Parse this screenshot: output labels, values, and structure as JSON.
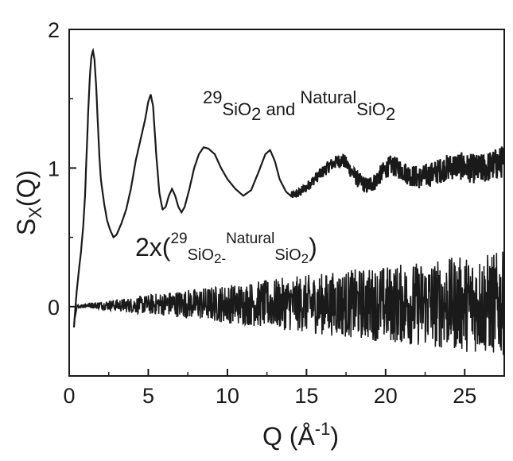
{
  "chart_data": {
    "type": "line",
    "title": "",
    "xlabel": {
      "main": "Q (Å",
      "sup": "-1",
      "close": ")"
    },
    "ylabel": {
      "main": "S",
      "sub": "X",
      "rest": "(Q)"
    },
    "xlim": [
      0,
      27.5
    ],
    "ylim": [
      -0.5,
      2.0
    ],
    "x_ticks": [
      0,
      5,
      10,
      15,
      20,
      25
    ],
    "y_ticks": [
      0,
      1,
      2
    ],
    "grid": false,
    "series": [
      {
        "points": [
          [
            0.3,
            -0.15
          ],
          [
            0.45,
            0.08
          ],
          [
            0.6,
            0.25
          ],
          [
            0.75,
            0.4
          ],
          [
            0.9,
            0.6
          ],
          [
            1.0,
            0.8
          ],
          [
            1.1,
            1.1
          ],
          [
            1.2,
            1.4
          ],
          [
            1.3,
            1.65
          ],
          [
            1.4,
            1.8
          ],
          [
            1.5,
            1.85
          ],
          [
            1.6,
            1.78
          ],
          [
            1.7,
            1.6
          ],
          [
            1.8,
            1.35
          ],
          [
            1.9,
            1.1
          ],
          [
            2.0,
            0.92
          ],
          [
            2.2,
            0.75
          ],
          [
            2.4,
            0.62
          ],
          [
            2.6,
            0.55
          ],
          [
            2.8,
            0.5
          ],
          [
            3.0,
            0.52
          ],
          [
            3.3,
            0.6
          ],
          [
            3.6,
            0.7
          ],
          [
            3.9,
            0.85
          ],
          [
            4.2,
            1.05
          ],
          [
            4.5,
            1.2
          ],
          [
            4.8,
            1.35
          ],
          [
            5.0,
            1.48
          ],
          [
            5.15,
            1.53
          ],
          [
            5.3,
            1.45
          ],
          [
            5.5,
            1.1
          ],
          [
            5.7,
            0.82
          ],
          [
            5.9,
            0.7
          ],
          [
            6.1,
            0.72
          ],
          [
            6.3,
            0.8
          ],
          [
            6.5,
            0.85
          ],
          [
            6.7,
            0.8
          ],
          [
            6.9,
            0.72
          ],
          [
            7.1,
            0.68
          ],
          [
            7.3,
            0.72
          ],
          [
            7.6,
            0.85
          ],
          [
            7.9,
            1.0
          ],
          [
            8.2,
            1.1
          ],
          [
            8.5,
            1.15
          ],
          [
            8.8,
            1.14
          ],
          [
            9.2,
            1.1
          ],
          [
            9.6,
            1.0
          ],
          [
            10.0,
            0.92
          ],
          [
            10.5,
            0.85
          ],
          [
            11.0,
            0.8
          ],
          [
            11.5,
            0.84
          ],
          [
            12.0,
            0.98
          ],
          [
            12.4,
            1.1
          ],
          [
            12.7,
            1.13
          ],
          [
            13.0,
            1.05
          ],
          [
            13.3,
            0.92
          ],
          [
            13.7,
            0.83
          ],
          [
            14.0,
            0.8
          ],
          [
            14.5,
            0.82
          ],
          [
            15.0,
            0.86
          ],
          [
            15.5,
            0.92
          ],
          [
            16.0,
            0.97
          ],
          [
            16.5,
            1.02
          ],
          [
            17.0,
            1.05
          ],
          [
            17.3,
            1.06
          ],
          [
            17.7,
            1.0
          ],
          [
            18.2,
            0.92
          ],
          [
            18.8,
            0.87
          ],
          [
            19.3,
            0.9
          ],
          [
            19.8,
            0.97
          ],
          [
            20.3,
            1.02
          ],
          [
            20.8,
            1.0
          ],
          [
            21.5,
            0.95
          ],
          [
            22.2,
            0.93
          ],
          [
            23.0,
            0.96
          ],
          [
            23.8,
            1.0
          ],
          [
            24.5,
            1.02
          ],
          [
            25.2,
            1.0
          ],
          [
            26.0,
            0.99
          ],
          [
            26.8,
            1.02
          ],
          [
            27.5,
            1.05
          ]
        ],
        "noise_start": 14.0,
        "noise_amplitude_start": 0.03,
        "noise_amplitude_end": 0.12
      },
      {
        "points": [
          [
            0.3,
            -0.12
          ],
          [
            0.5,
            0.0
          ],
          [
            1.0,
            0.01
          ],
          [
            2.0,
            0.01
          ],
          [
            4.0,
            0.01
          ],
          [
            6.0,
            0.02
          ],
          [
            8.0,
            0.02
          ],
          [
            10.0,
            0.02
          ],
          [
            12.0,
            0.02
          ],
          [
            14.0,
            0.02
          ],
          [
            16.0,
            0.02
          ],
          [
            18.0,
            0.02
          ],
          [
            20.0,
            0.02
          ],
          [
            22.0,
            0.02
          ],
          [
            24.0,
            0.02
          ],
          [
            26.0,
            0.02
          ],
          [
            27.5,
            0.02
          ]
        ],
        "noise_start": 0.5,
        "noise_amplitude_start": 0.01,
        "noise_amplitude_end": 0.38
      }
    ],
    "annotations": {
      "upper": {
        "iso_sup": "29",
        "iso_main": "SiO",
        "iso_sub": "2",
        "and_text": " and ",
        "nat_sup": "Natural",
        "nat_main": "SiO",
        "nat_sub": "2"
      },
      "lower": {
        "prefix": "2x(",
        "iso_sup": "29",
        "iso_main": "SiO",
        "iso_sub": "2-",
        "nat_sup": "Natural",
        "nat_main": "SiO",
        "nat_sub": "2",
        "suffix": ")"
      }
    },
    "colors": {
      "line": "#1a1a1a",
      "axis": "#1a1a1a"
    }
  }
}
